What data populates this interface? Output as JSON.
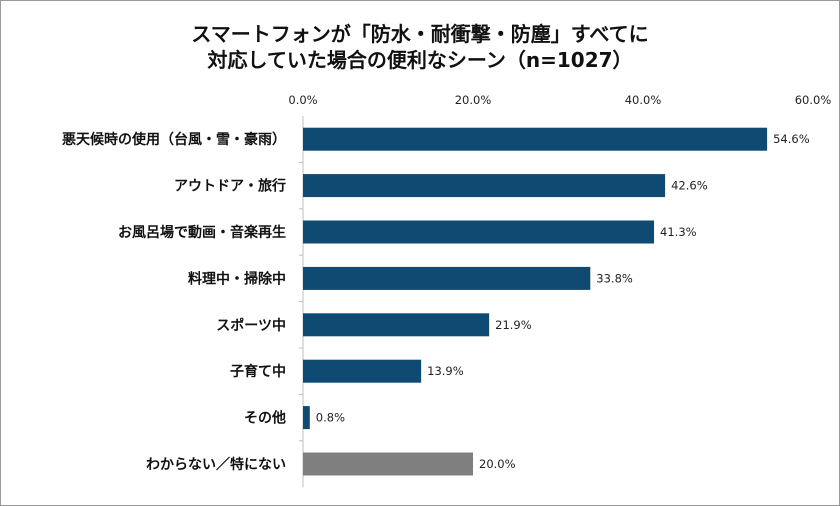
{
  "chart_data": {
    "type": "bar",
    "orientation": "horizontal",
    "title": "スマートフォンが「防水・耐衝撃・防塵」すべてに",
    "subtitle": "対応していた場合の便利なシーン（n=1027）",
    "categories": [
      "悪天候時の使用（台風・雪・豪雨）",
      "アウトドア・旅行",
      "お風呂場で動画・音楽再生",
      "料理中・掃除中",
      "スポーツ中",
      "子育て中",
      "その他",
      "わからない／特にない"
    ],
    "values": [
      54.6,
      42.6,
      41.3,
      33.8,
      21.9,
      13.9,
      0.8,
      20.0
    ],
    "data_labels": [
      "54.6%",
      "42.6%",
      "41.3%",
      "33.8%",
      "21.9%",
      "13.9%",
      "0.8%",
      "20.0%"
    ],
    "xlim": [
      0,
      60
    ],
    "x_ticks": [
      "0.0%",
      "20.0%",
      "40.0%",
      "60.0%"
    ],
    "x_tick_values": [
      0,
      20,
      40,
      60
    ],
    "axis_position": "top",
    "grid": false,
    "colors": {
      "bar": "#0e4a72",
      "bar_last": "#7f7f7f"
    }
  }
}
